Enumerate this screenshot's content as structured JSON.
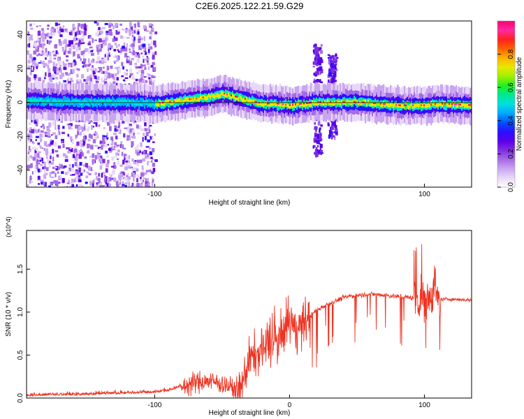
{
  "page": {
    "title": "C2E6.2025.122.21.59.G29"
  },
  "colors": {
    "snr_line": "#ee3322",
    "axis": "#000000",
    "zero_line": "#000000",
    "colormap": [
      "#ffffff",
      "#e8d8f8",
      "#c9a6f0",
      "#a66ae6",
      "#7f2ee0",
      "#5a00e8",
      "#2a10ff",
      "#0050ff",
      "#00a8ff",
      "#00e0e0",
      "#00e890",
      "#20f020",
      "#a0f000",
      "#e8e800",
      "#ffb000",
      "#ff6000",
      "#ff2020",
      "#ff2aa0",
      "#ff0070"
    ]
  },
  "chart_data": [
    {
      "type": "heatmap",
      "title": "C2E6.2025.122.21.59.G29",
      "xlabel": "Height of straight line (km)",
      "ylabel": "Frequency (Hz)",
      "xlim": [
        -195,
        135
      ],
      "ylim": [
        -50,
        48
      ],
      "xticks": [
        -100,
        100
      ],
      "yticks": [
        -40,
        -20,
        0,
        20,
        40
      ],
      "colorbar": {
        "label": "Normalized spectral amplitude",
        "range": [
          0.0,
          1.0
        ],
        "ticks": [
          0.0,
          0.2,
          0.4,
          0.6,
          0.8
        ]
      },
      "ridge": {
        "x": [
          -195,
          -160,
          -120,
          -100,
          -80,
          -60,
          -50,
          -40,
          -30,
          -20,
          -10,
          0,
          20,
          35,
          50,
          80,
          100,
          110,
          135
        ],
        "frequency": [
          1,
          0,
          0,
          -1,
          1,
          3,
          5,
          3,
          1,
          -1,
          -1,
          -2,
          0,
          0,
          0,
          -2,
          -2,
          -1,
          -2
        ]
      },
      "broadband_bursts": [
        {
          "x_start": -195,
          "x_end": -100,
          "f_min": -50,
          "f_max": 48
        },
        {
          "x_start": 17,
          "x_end": 23,
          "f_min": -30,
          "f_max": 35
        },
        {
          "x_start": 28,
          "x_end": 34,
          "f_min": -20,
          "f_max": 30
        }
      ]
    },
    {
      "type": "line",
      "xlabel": "Height of straight line (km)",
      "ylabel": "SNR (10 * v/v)",
      "y_multiplier": "(x10^4)",
      "xlim": [
        -195,
        135
      ],
      "ylim": [
        0,
        1.95
      ],
      "xticks": [
        -100,
        0,
        100
      ],
      "yticks": [
        0.0,
        0.5,
        1.0,
        1.5
      ],
      "series": [
        {
          "x": [
            -195,
            -180,
            -160,
            -140,
            -120,
            -100,
            -90,
            -80,
            -70,
            -60,
            -50,
            -40,
            -37,
            -30,
            -25,
            -20,
            -15,
            -10,
            -5,
            0,
            5,
            10,
            15,
            20,
            25,
            30,
            40,
            50,
            60,
            70,
            80,
            90,
            95,
            100,
            105,
            108,
            110,
            115,
            120,
            135
          ],
          "y": [
            0.02,
            0.03,
            0.03,
            0.04,
            0.05,
            0.06,
            0.08,
            0.13,
            0.18,
            0.2,
            0.17,
            0.1,
            0.06,
            0.45,
            0.5,
            0.55,
            0.62,
            0.65,
            0.72,
            0.85,
            0.8,
            0.84,
            0.95,
            1.02,
            1.07,
            1.1,
            1.17,
            1.2,
            1.21,
            1.2,
            1.18,
            1.17,
            1.16,
            1.15,
            1.18,
            1.35,
            1.15,
            1.15,
            1.15,
            1.14
          ]
        }
      ]
    }
  ]
}
